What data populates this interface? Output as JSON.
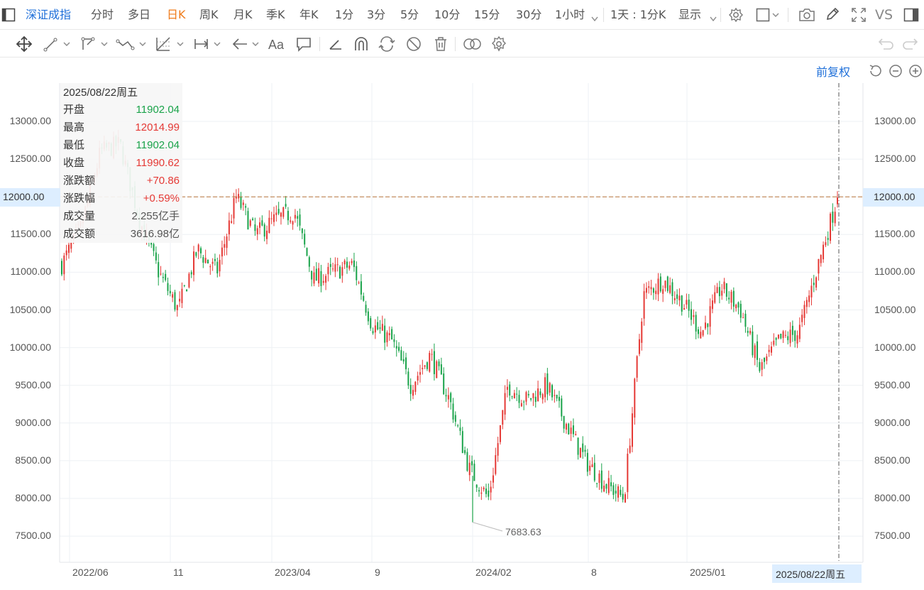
{
  "toolbar": {
    "name": "深证成指",
    "periods": [
      "分时",
      "多日",
      "日K",
      "周K",
      "月K",
      "季K",
      "年K",
      "1分",
      "3分",
      "5分",
      "10分",
      "15分",
      "30分"
    ],
    "active_period": "日K",
    "hour_dropdown": "1小时",
    "mode_dropdown": "1天 : 1分K",
    "display_dropdown": "显示",
    "vs_label": "VS"
  },
  "chart_header": {
    "adjust_label": "前复权"
  },
  "info_panel": {
    "date": "2025/08/22周五",
    "rows": [
      {
        "label": "开盘",
        "value": "11902.04",
        "color": "#1aa34a"
      },
      {
        "label": "最高",
        "value": "12014.99",
        "color": "#e53935"
      },
      {
        "label": "最低",
        "value": "11902.04",
        "color": "#1aa34a"
      },
      {
        "label": "收盘",
        "value": "11990.62",
        "color": "#e53935"
      },
      {
        "label": "涨跌额",
        "value": "+70.86",
        "color": "#e53935"
      },
      {
        "label": "涨跌幅",
        "value": "+0.59%",
        "color": "#e53935"
      },
      {
        "label": "成交量",
        "value": "2.255亿手",
        "color": "#555555"
      },
      {
        "label": "成交额",
        "value": "3616.98亿",
        "color": "#555555"
      }
    ]
  },
  "crosshair": {
    "price_label": "12000.00",
    "date_label": "2025/08/22周五"
  },
  "min_marker": "7683.63",
  "colors": {
    "up": "#e53935",
    "down": "#1aa34a",
    "accent": "#1e6fd9",
    "active": "#ef7b1a"
  },
  "chart_data": {
    "type": "candlestick",
    "y_ticks": [
      "13000.00",
      "12500.00",
      "12000.00",
      "11500.00",
      "11000.00",
      "10500.00",
      "10000.00",
      "9500.00",
      "9000.00",
      "8500.00",
      "8000.00",
      "7500.00"
    ],
    "x_ticks": [
      "2022/06",
      "11",
      "2023/04",
      "9",
      "2024/02",
      "8",
      "2025/01"
    ],
    "ylim": [
      7150,
      13500
    ],
    "close_path": [
      [
        "2022/04",
        11100
      ],
      [
        "2022/05",
        11600
      ],
      [
        "2022/06",
        12600
      ],
      [
        "2022/07",
        12700
      ],
      [
        "2022/08",
        11700
      ],
      [
        "2022/09",
        11000
      ],
      [
        "2022/10",
        10500
      ],
      [
        "2022/11",
        11300
      ],
      [
        "2022/12",
        11000
      ],
      [
        "2023/01",
        12000
      ],
      [
        "2023/02",
        11500
      ],
      [
        "2023/03",
        11700
      ],
      [
        "2023/04",
        11800
      ],
      [
        "2023/05",
        10900
      ],
      [
        "2023/06",
        11000
      ],
      [
        "2023/07",
        11100
      ],
      [
        "2023/08",
        10300
      ],
      [
        "2023/09",
        10100
      ],
      [
        "2023/10",
        9500
      ],
      [
        "2023/11",
        9900
      ],
      [
        "2023/12",
        9300
      ],
      [
        "2024/01",
        8400
      ],
      [
        "2024/02",
        8000
      ],
      [
        "2024/03",
        9500
      ],
      [
        "2024/04",
        9300
      ],
      [
        "2024/05",
        9500
      ],
      [
        "2024/06",
        9000
      ],
      [
        "2024/07",
        8500
      ],
      [
        "2024/08",
        8200
      ],
      [
        "2024/09",
        8000
      ],
      [
        "2024/10",
        10700
      ],
      [
        "2024/11",
        10900
      ],
      [
        "2024/12",
        10600
      ],
      [
        "2025/01",
        10200
      ],
      [
        "2025/02",
        10800
      ],
      [
        "2025/03",
        10500
      ],
      [
        "2025/04",
        9700
      ],
      [
        "2025/05",
        10100
      ],
      [
        "2025/06",
        10200
      ],
      [
        "2025/07",
        11100
      ],
      [
        "2025/08",
        11990.62
      ]
    ],
    "low": 7683.63,
    "last": {
      "date": "2025/08/22",
      "open": 11902.04,
      "high": 12014.99,
      "low": 11902.04,
      "close": 11990.62
    }
  }
}
